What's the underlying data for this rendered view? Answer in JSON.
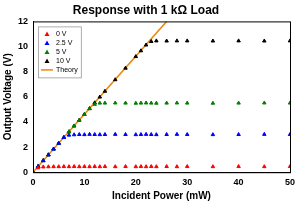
{
  "chart_data": {
    "type": "scatter",
    "title": "Response with 1 kΩ Load",
    "x_label": "Incident Power (mW)",
    "y_label": "Output Voltage (V)",
    "xlim": [
      0,
      50
    ],
    "xticks": [
      0,
      10,
      20,
      30,
      40,
      50
    ],
    "ylim": [
      0,
      12
    ],
    "yticks": [
      0,
      2,
      4,
      6,
      8,
      10,
      12
    ],
    "grid": false,
    "legend": "upper left",
    "series": [
      {
        "name": "0 V",
        "color": "#ff0000",
        "marker": "triangle",
        "line_style": "none",
        "x": [
          0,
          1,
          2,
          3,
          4,
          5,
          6,
          7,
          8,
          9,
          10,
          11,
          12,
          13,
          14,
          16,
          18,
          20,
          21,
          22,
          23,
          24,
          26,
          28,
          30,
          35,
          40,
          45,
          50
        ],
        "values": [
          0,
          0.35,
          0.42,
          0.43,
          0.44,
          0.44,
          0.45,
          0.44,
          0.45,
          0.44,
          0.45,
          0.44,
          0.45,
          0.44,
          0.45,
          0.44,
          0.45,
          0.44,
          0.45,
          0.44,
          0.45,
          0.44,
          0.45,
          0.44,
          0.45,
          0.44,
          0.45,
          0.44,
          0.45
        ]
      },
      {
        "name": "2.5 V",
        "color": "#0000ff",
        "marker": "triangle",
        "line_style": "none",
        "x": [
          0,
          1,
          2,
          3,
          4,
          5,
          6,
          7,
          8,
          9,
          10,
          11,
          12,
          13,
          14,
          16,
          18,
          20,
          21,
          22,
          23,
          24,
          26,
          28,
          30,
          35,
          40,
          45,
          50
        ],
        "values": [
          0,
          0.46,
          0.92,
          1.38,
          1.84,
          2.3,
          2.76,
          2.95,
          2.98,
          3.0,
          2.99,
          3.01,
          3.0,
          2.99,
          3.0,
          3.01,
          3.0,
          2.99,
          3.0,
          3.01,
          3.0,
          2.99,
          3.0,
          3.01,
          3.0,
          2.99,
          3.0,
          3.01,
          3.0
        ]
      },
      {
        "name": "5 V",
        "color": "#008000",
        "marker": "triangle",
        "line_style": "none",
        "x": [
          0,
          1,
          2,
          3,
          4,
          5,
          6,
          7,
          8,
          9,
          10,
          11,
          12,
          13,
          14,
          16,
          18,
          20,
          21,
          22,
          23,
          24,
          26,
          28,
          30,
          35,
          40,
          45,
          50
        ],
        "values": [
          0,
          0.46,
          0.92,
          1.38,
          1.84,
          2.3,
          2.76,
          3.22,
          3.68,
          4.14,
          4.6,
          5.06,
          5.4,
          5.5,
          5.5,
          5.51,
          5.5,
          5.49,
          5.5,
          5.51,
          5.5,
          5.49,
          5.5,
          5.51,
          5.5,
          5.49,
          5.5,
          5.51,
          5.5
        ]
      },
      {
        "name": "10 V",
        "color": "#000000",
        "marker": "triangle",
        "line_style": "none",
        "x": [
          0,
          1,
          2,
          3,
          4,
          5,
          6,
          7,
          8,
          9,
          10,
          11,
          12,
          13,
          14,
          16,
          18,
          20,
          21,
          22,
          23,
          24,
          26,
          28,
          30,
          35,
          40,
          45,
          50
        ],
        "values": [
          0,
          0.46,
          0.92,
          1.38,
          1.84,
          2.3,
          2.76,
          3.22,
          3.68,
          4.14,
          4.6,
          5.06,
          5.52,
          5.98,
          6.44,
          7.36,
          8.28,
          9.2,
          9.66,
          10.12,
          10.4,
          10.45,
          10.44,
          10.45,
          10.45,
          10.44,
          10.45,
          10.44,
          10.45
        ]
      },
      {
        "name": "Theory",
        "color": "#e8890c",
        "marker": "none",
        "line_style": "solid",
        "x": [
          0,
          26
        ],
        "values": [
          0,
          12
        ]
      }
    ]
  }
}
